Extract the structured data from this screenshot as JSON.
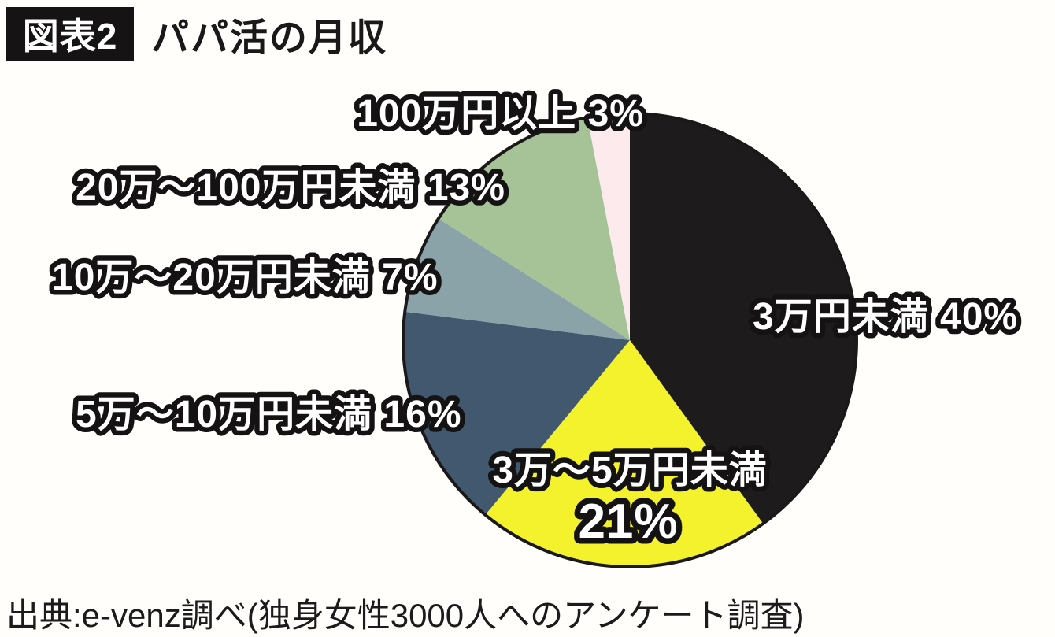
{
  "header": {
    "badge": "図表2",
    "title": "パパ活の月収"
  },
  "labels": {
    "over100": "100万円以上 3%",
    "l20to100": "20万〜100万円未満 13%",
    "l10to20": "10万〜20万円未満 7%",
    "l5to10": "5万〜10万円未満 16%",
    "l3to5_line1": "3万〜5万円未満",
    "l3to5_line2": "21%",
    "under3": "3万円未満 40%"
  },
  "source": "出典:e-venz調べ(独身女性3000人へのアンケート調査)",
  "chart_data": {
    "type": "pie",
    "title": "パパ活の月収",
    "categories": [
      "3万円未満",
      "3万〜5万円未満",
      "5万〜10万円未満",
      "10万〜20万円未満",
      "20万〜100万円未満",
      "100万円以上"
    ],
    "values": [
      40,
      21,
      16,
      7,
      13,
      3
    ],
    "unit": "%",
    "colors": [
      "#1d1b1b",
      "#f4f22c",
      "#41586e",
      "#8aa3a8",
      "#a5c396",
      "#fceaed"
    ],
    "start_angle_deg": 0,
    "direction": "clockwise",
    "outline_color": "#1a1818",
    "label_text_color": "#ffffff",
    "label_outline_color": "#141212",
    "legend_position": "around-slices",
    "source": "出典:e-venz調べ(独身女性3000人へのアンケート調査)"
  }
}
